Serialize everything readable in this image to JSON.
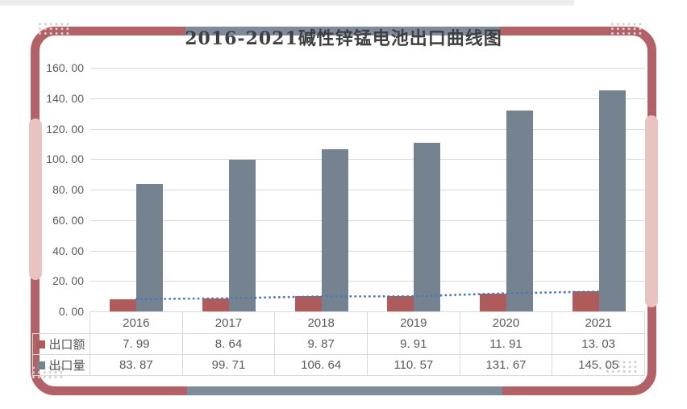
{
  "title": "2016-2021碱性锌锰电池出口曲线图",
  "colors": {
    "frame_border": "#b26166",
    "frame_accent_pink": "#e9c3c0",
    "frame_accent_blue": "#7d8b9c",
    "bar_red": "#b05b5b",
    "bar_blue_gray": "#75828f",
    "dotted_line": "#4b79b8",
    "grid_line": "#d9d9d9",
    "text": "#595959",
    "title_text": "#3f3f3f",
    "dots_decor": "#d7cdce"
  },
  "chart_data": {
    "type": "bar",
    "title": "2016-2021碱性锌锰电池出口曲线图",
    "categories": [
      "2016",
      "2017",
      "2018",
      "2019",
      "2020",
      "2021"
    ],
    "series": [
      {
        "key": "export-value",
        "name": "出口额",
        "type": "bar",
        "color": "#b05b5b",
        "values": [
          7.99,
          8.64,
          9.87,
          9.91,
          11.91,
          13.03
        ],
        "display": [
          "7. 99",
          "8. 64",
          "9. 87",
          "9. 91",
          "11. 91",
          "13. 03"
        ]
      },
      {
        "key": "export-volume",
        "name": "出口量",
        "type": "bar",
        "color": "#75828f",
        "values": [
          83.87,
          99.71,
          106.64,
          110.57,
          131.67,
          145.05
        ],
        "display": [
          "83. 87",
          "99. 71",
          "106. 64",
          "110. 57",
          "131. 67",
          "145. 05"
        ]
      },
      {
        "key": "export-value-trend",
        "name": "出口额趋势线",
        "type": "dotted-line",
        "color": "#4b79b8",
        "values": [
          7.99,
          8.64,
          9.87,
          9.91,
          11.91,
          13.03
        ]
      }
    ],
    "ylim": [
      0,
      160
    ],
    "ytick_step": 20,
    "ytick_labels": [
      "160. 00",
      "140. 00",
      "120. 00",
      "100. 00",
      "80. 00",
      "60. 00",
      "40. 00",
      "20. 00",
      "0. 00"
    ],
    "grid": true,
    "legend_position": "data-table-left",
    "xlabel": "",
    "ylabel": ""
  }
}
